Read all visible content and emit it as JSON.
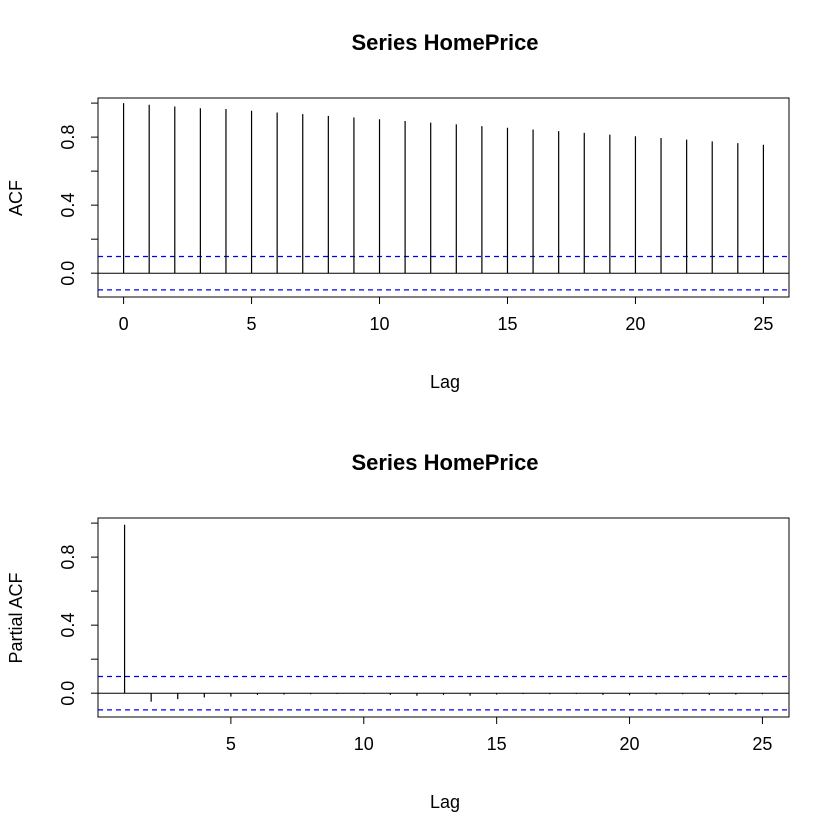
{
  "charts": [
    {
      "type": "bar",
      "title": "Series  HomePrice",
      "xlabel": "Lag",
      "ylabel": "ACF",
      "xlim": [
        -1,
        26
      ],
      "ylim": [
        -0.14,
        1.03
      ],
      "xticks": [
        0,
        5,
        10,
        15,
        20,
        25
      ],
      "xtick_labels": [
        "0",
        "5",
        "10",
        "15",
        "20",
        "25"
      ],
      "yticks": [
        0.0,
        0.4,
        0.8
      ],
      "ytick_labels": [
        "0.0",
        "0.4",
        "0.8"
      ],
      "yticks_minor": [
        0.2,
        0.6,
        1.0
      ],
      "conf_level": 0.098,
      "x": [
        0,
        1,
        2,
        3,
        4,
        5,
        6,
        7,
        8,
        9,
        10,
        11,
        12,
        13,
        14,
        15,
        16,
        17,
        18,
        19,
        20,
        21,
        22,
        23,
        24,
        25
      ],
      "values": [
        1.0,
        0.99,
        0.98,
        0.97,
        0.965,
        0.955,
        0.945,
        0.935,
        0.925,
        0.915,
        0.905,
        0.895,
        0.885,
        0.875,
        0.865,
        0.855,
        0.845,
        0.835,
        0.825,
        0.815,
        0.805,
        0.795,
        0.785,
        0.775,
        0.765,
        0.755
      ],
      "colors": {
        "bars": "#000000",
        "conf": "#0000ee",
        "frame": "#000000"
      }
    },
    {
      "type": "bar",
      "title": "Series  HomePrice",
      "xlabel": "Lag",
      "ylabel": "Partial ACF",
      "xlim": [
        0,
        26
      ],
      "ylim": [
        -0.14,
        1.03
      ],
      "xticks": [
        5,
        10,
        15,
        20,
        25
      ],
      "xtick_labels": [
        "5",
        "10",
        "15",
        "20",
        "25"
      ],
      "yticks": [
        0.0,
        0.4,
        0.8
      ],
      "ytick_labels": [
        "0.0",
        "0.4",
        "0.8"
      ],
      "yticks_minor": [
        0.2,
        0.6,
        1.0
      ],
      "conf_level": 0.098,
      "x": [
        1,
        2,
        3,
        4,
        5,
        6,
        7,
        8,
        9,
        10,
        11,
        12,
        13,
        14,
        15,
        16,
        17,
        18,
        19,
        20,
        21,
        22,
        23,
        24,
        25
      ],
      "values": [
        0.99,
        -0.05,
        -0.035,
        -0.025,
        -0.02,
        -0.01,
        -0.008,
        -0.006,
        -0.005,
        -0.004,
        -0.01,
        -0.015,
        -0.01,
        -0.015,
        -0.008,
        -0.005,
        -0.006,
        -0.005,
        -0.01,
        -0.012,
        -0.008,
        -0.006,
        -0.01,
        -0.008,
        -0.006
      ],
      "colors": {
        "bars": "#000000",
        "conf": "#0000ee",
        "frame": "#000000"
      }
    }
  ]
}
